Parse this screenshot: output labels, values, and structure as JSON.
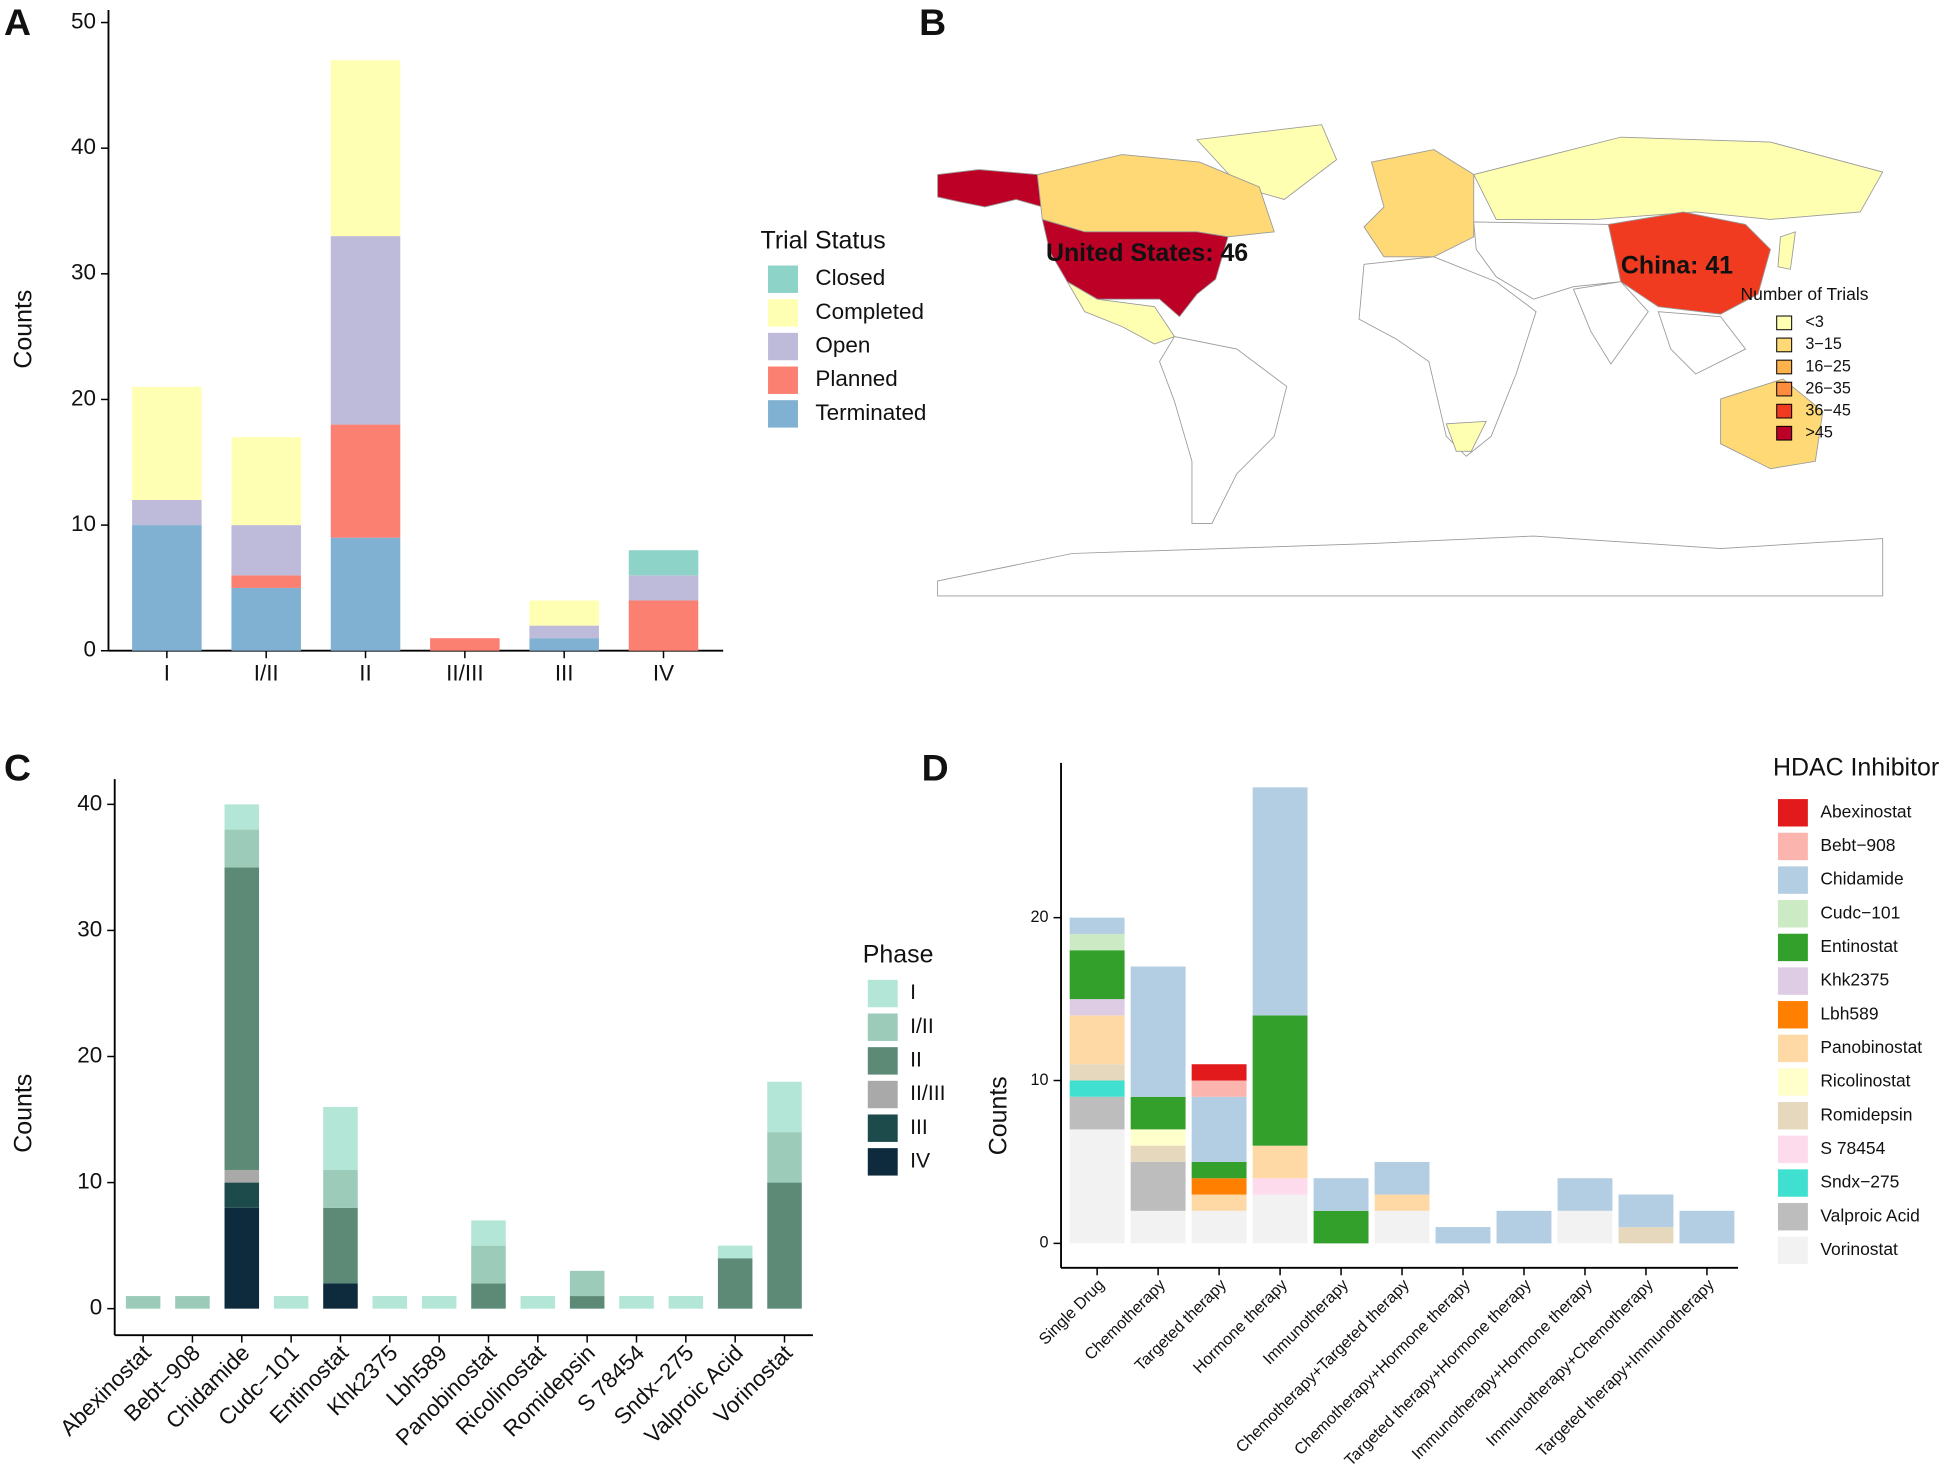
{
  "chart_data": [
    {
      "type": "bar",
      "panel_label": "A",
      "y_label": "Counts",
      "legend_title": "Trial Status",
      "categories": [
        "I",
        "I/II",
        "II",
        "II/III",
        "III",
        "IV"
      ],
      "series": [
        {
          "name": "Closed",
          "color": "#8dd3c7",
          "values": [
            0,
            0,
            0,
            0,
            0,
            2
          ]
        },
        {
          "name": "Completed",
          "color": "#ffffb3",
          "values": [
            9,
            7,
            14,
            0,
            2,
            0
          ]
        },
        {
          "name": "Open",
          "color": "#bebada",
          "values": [
            2,
            4,
            15,
            0,
            1,
            2
          ]
        },
        {
          "name": "Planned",
          "color": "#fb8072",
          "values": [
            0,
            1,
            9,
            1,
            0,
            4
          ]
        },
        {
          "name": "Terminated",
          "color": "#80b1d3",
          "values": [
            10,
            5,
            9,
            0,
            1,
            0
          ]
        }
      ],
      "ylim": [
        0,
        51
      ],
      "yticks": [
        0,
        10,
        20,
        30,
        40,
        50
      ]
    },
    {
      "type": "map",
      "panel_label": "B",
      "legend_title": "Number of Trials",
      "legend_labels": [
        "<3",
        "3−15",
        "16−25",
        "26−35",
        "36−45",
        ">45"
      ],
      "legend_colors": [
        "#ffffb2",
        "#fed976",
        "#feb24c",
        "#fd8d3c",
        "#f03b20",
        "#bd0026"
      ],
      "annotations": [
        "United States: 46",
        "China: 41"
      ]
    },
    {
      "type": "bar",
      "panel_label": "C",
      "y_label": "Counts",
      "legend_title": "Phase",
      "categories": [
        "Abexinostat",
        "Bebt−908",
        "Chidamide",
        "Cudc−101",
        "Entinostat",
        "Khk2375",
        "Lbh589",
        "Panobinostat",
        "Ricolinostat",
        "Romidepsin",
        "S 78454",
        "Sndx−275",
        "Valproic Acid",
        "Vorinostat"
      ],
      "series": [
        {
          "name": "I",
          "color": "#b3e6d6",
          "values": [
            0,
            0,
            2,
            1,
            5,
            1,
            1,
            2,
            1,
            0,
            1,
            1,
            1,
            4
          ]
        },
        {
          "name": "I/II",
          "color": "#9ccbb9",
          "values": [
            1,
            1,
            3,
            0,
            3,
            0,
            0,
            3,
            0,
            2,
            0,
            0,
            0,
            4
          ]
        },
        {
          "name": "II",
          "color": "#5d8a77",
          "values": [
            0,
            0,
            24,
            0,
            6,
            0,
            0,
            2,
            0,
            1,
            0,
            0,
            4,
            10
          ]
        },
        {
          "name": "II/III",
          "color": "#a9a9a9",
          "values": [
            0,
            0,
            1,
            0,
            0,
            0,
            0,
            0,
            0,
            0,
            0,
            0,
            0,
            0
          ]
        },
        {
          "name": "III",
          "color": "#1d4a4a",
          "values": [
            0,
            0,
            2,
            0,
            0,
            0,
            0,
            0,
            0,
            0,
            0,
            0,
            0,
            0
          ]
        },
        {
          "name": "IV",
          "color": "#0d2b3c",
          "values": [
            0,
            0,
            8,
            0,
            2,
            0,
            0,
            0,
            0,
            0,
            0,
            0,
            0,
            0
          ]
        }
      ],
      "ylim": [
        -2.1,
        42
      ],
      "yticks": [
        0,
        10,
        20,
        30,
        40
      ]
    },
    {
      "type": "bar",
      "panel_label": "D",
      "y_label": "Counts",
      "legend_title": "HDAC Inhibitor",
      "categories": [
        "Single Drug",
        "Chemotherapy",
        "Targeted therapy",
        "Hormone therapy",
        "Immunotherapy",
        "Chemotherapy+Targeted therapy",
        "Chemotherapy+Hormone therapy",
        "Targeted therapy+Hormone therapy",
        "Immunotherapy+Hormone therapy",
        "Immunotherapy+Chemotherapy",
        "Targeted therapy+Immunotherapy"
      ],
      "series": [
        {
          "name": "Abexinostat",
          "color": "#e31a1c",
          "values": [
            0,
            0,
            1,
            0,
            0,
            0,
            0,
            0,
            0,
            0,
            0
          ]
        },
        {
          "name": "Bebt−908",
          "color": "#fbb4ae",
          "values": [
            0,
            0,
            1,
            0,
            0,
            0,
            0,
            0,
            0,
            0,
            0
          ]
        },
        {
          "name": "Chidamide",
          "color": "#b3cde3",
          "values": [
            1,
            8,
            4,
            14,
            2,
            2,
            1,
            2,
            2,
            2,
            2
          ]
        },
        {
          "name": "Cudc−101",
          "color": "#ccebc5",
          "values": [
            1,
            0,
            0,
            0,
            0,
            0,
            0,
            0,
            0,
            0,
            0
          ]
        },
        {
          "name": "Entinostat",
          "color": "#33a02c",
          "values": [
            3,
            2,
            1,
            8,
            2,
            0,
            0,
            0,
            0,
            0,
            0
          ]
        },
        {
          "name": "Khk2375",
          "color": "#decbe4",
          "values": [
            1,
            0,
            0,
            0,
            0,
            0,
            0,
            0,
            0,
            0,
            0
          ]
        },
        {
          "name": "Lbh589",
          "color": "#ff7f00",
          "values": [
            0,
            0,
            1,
            0,
            0,
            0,
            0,
            0,
            0,
            0,
            0
          ]
        },
        {
          "name": "Panobinostat",
          "color": "#fed9a6",
          "values": [
            3,
            0,
            1,
            2,
            0,
            1,
            0,
            0,
            0,
            0,
            0
          ]
        },
        {
          "name": "Ricolinostat",
          "color": "#ffffcc",
          "values": [
            0,
            1,
            0,
            0,
            0,
            0,
            0,
            0,
            0,
            0,
            0
          ]
        },
        {
          "name": "Romidepsin",
          "color": "#e5d8bd",
          "values": [
            1,
            1,
            0,
            0,
            0,
            0,
            0,
            0,
            0,
            1,
            0
          ]
        },
        {
          "name": "S 78454",
          "color": "#fddaec",
          "values": [
            0,
            0,
            0,
            1,
            0,
            0,
            0,
            0,
            0,
            0,
            0
          ]
        },
        {
          "name": "Sndx−275",
          "color": "#40e0d0",
          "values": [
            1,
            0,
            0,
            0,
            0,
            0,
            0,
            0,
            0,
            0,
            0
          ]
        },
        {
          "name": "Valproic Acid",
          "color": "#bdbdbd",
          "values": [
            2,
            3,
            0,
            0,
            0,
            0,
            0,
            0,
            0,
            0,
            0
          ]
        },
        {
          "name": "Vorinostat",
          "color": "#f2f2f2",
          "values": [
            7,
            2,
            2,
            3,
            0,
            2,
            0,
            0,
            2,
            0,
            0
          ]
        }
      ],
      "ylim": [
        -1.5,
        29.5
      ],
      "yticks": [
        0,
        10,
        20
      ]
    }
  ]
}
